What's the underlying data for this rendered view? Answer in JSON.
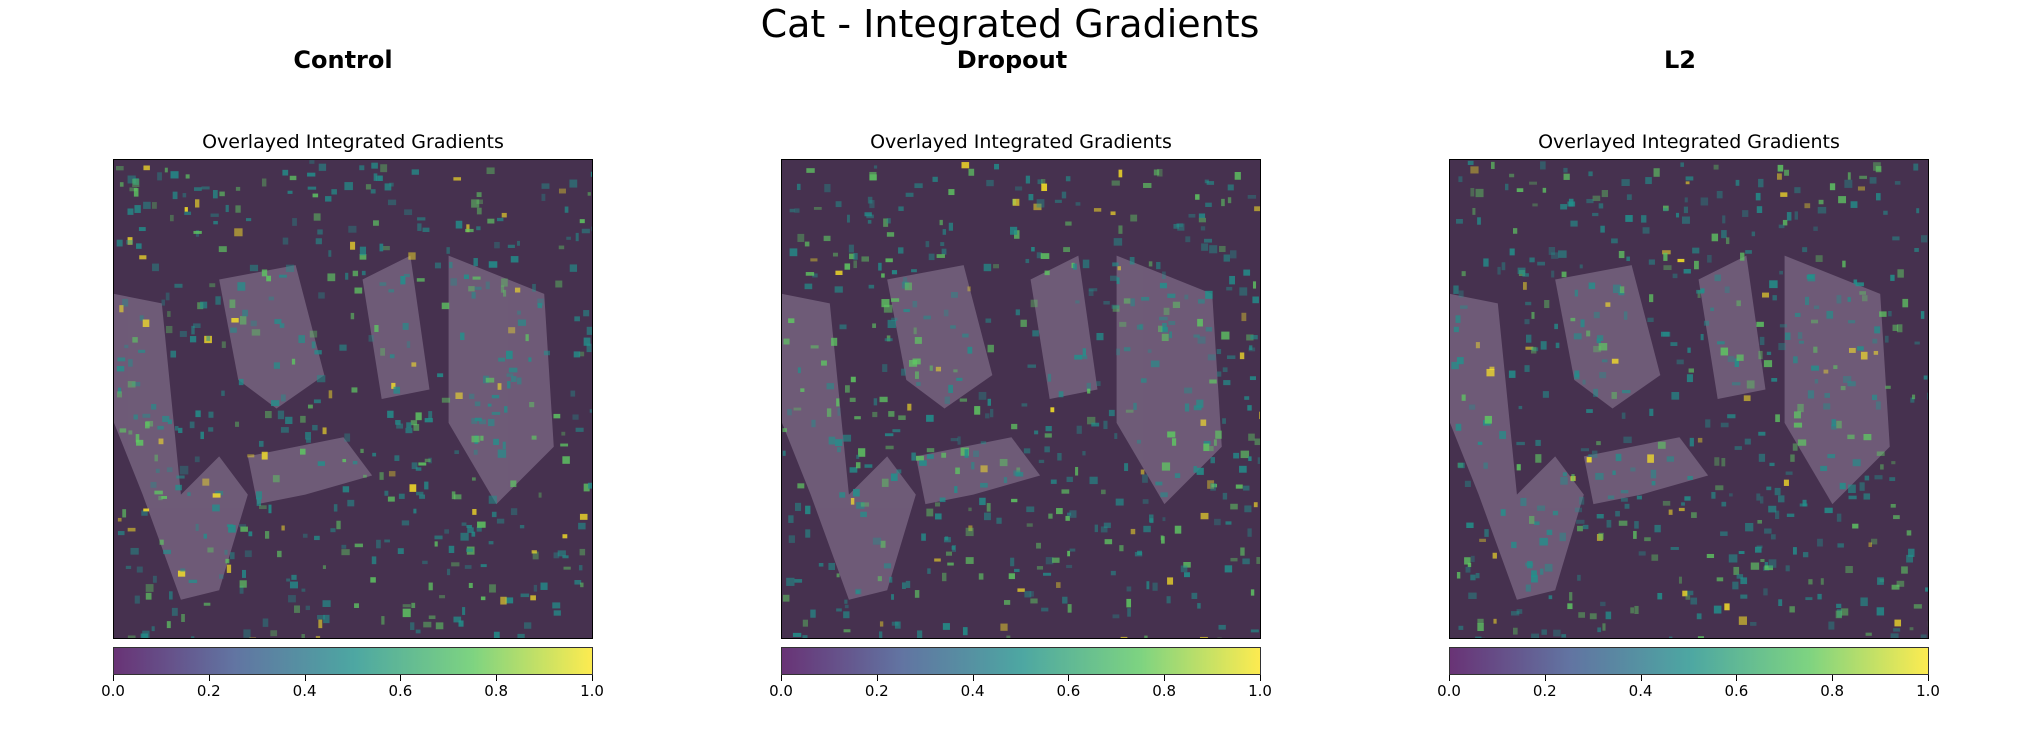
{
  "figure": {
    "title": "Cat - Integrated Gradients"
  },
  "panels": [
    {
      "column_title": "Control",
      "panel_title": "Overlayed Integrated Gradients"
    },
    {
      "column_title": "Dropout",
      "panel_title": "Overlayed Integrated Gradients"
    },
    {
      "column_title": "L2",
      "panel_title": "Overlayed Integrated Gradients"
    }
  ],
  "colorbar": {
    "colormap": "viridis",
    "alpha": 0.55,
    "range": [
      0.0,
      1.0
    ],
    "ticks": [
      "0.0",
      "0.2",
      "0.4",
      "0.6",
      "0.8",
      "1.0"
    ],
    "colors": [
      "#440154",
      "#3b528b",
      "#21918c",
      "#5ec962",
      "#fde725"
    ]
  },
  "image": {
    "description_icon": "cat-heatmap-image",
    "base_color": "#46314f",
    "light_color": "#9f8fa8",
    "highlight_colors": [
      "#21918c",
      "#5ec962",
      "#fde725"
    ]
  }
}
